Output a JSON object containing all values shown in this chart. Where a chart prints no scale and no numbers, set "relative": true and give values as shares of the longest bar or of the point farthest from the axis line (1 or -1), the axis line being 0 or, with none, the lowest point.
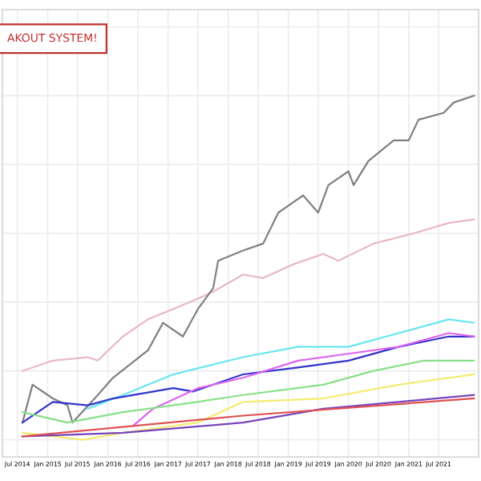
{
  "chart_data": {
    "type": "line",
    "relative": true,
    "grid": true,
    "legend": false,
    "annotations": [
      "AKOUT SYSTEM!"
    ],
    "xlim": [
      "2014-04",
      "2022-03"
    ],
    "xticks": [
      {
        "value": "2014-07",
        "label": "Jul 2014"
      },
      {
        "value": "2015-01",
        "label": "Jan 2015"
      },
      {
        "value": "2015-07",
        "label": "Jul 2015"
      },
      {
        "value": "2016-01",
        "label": "Jan 2016"
      },
      {
        "value": "2016-07",
        "label": "Jul 2016"
      },
      {
        "value": "2017-01",
        "label": "Jan 2017"
      },
      {
        "value": "2017-07",
        "label": "Jul 2017"
      },
      {
        "value": "2018-01",
        "label": "Jan 2018"
      },
      {
        "value": "2018-07",
        "label": "Jul 2018"
      },
      {
        "value": "2019-01",
        "label": "Jan 2019"
      },
      {
        "value": "2019-07",
        "label": "Jul 2019"
      },
      {
        "value": "2020-01",
        "label": "Jan 2020"
      },
      {
        "value": "2020-07",
        "label": "Jul 2020"
      },
      {
        "value": "2021-01",
        "label": "Jan 2021"
      },
      {
        "value": "2021-07",
        "label": "Jul 2021"
      }
    ],
    "series": [
      {
        "color": "#e8b8c4",
        "x": [
          "2014-08",
          "2015-02",
          "2015-09",
          "2015-11",
          "2016-04",
          "2016-09",
          "2017-02",
          "2017-07",
          "2017-10",
          "2018-04",
          "2018-08",
          "2019-02",
          "2019-08",
          "2019-11",
          "2020-06",
          "2021-02",
          "2021-09",
          "2022-02"
        ],
        "values": [
          0.2,
          0.23,
          0.24,
          0.23,
          0.3,
          0.35,
          0.38,
          0.41,
          0.43,
          0.48,
          0.47,
          0.51,
          0.54,
          0.52,
          0.57,
          0.6,
          0.63,
          0.64
        ]
      },
      {
        "color": "#808080",
        "x": [
          "2014-08",
          "2014-10",
          "2015-02",
          "2015-05",
          "2015-06",
          "2015-11",
          "2016-02",
          "2016-09",
          "2016-12",
          "2017-04",
          "2017-07",
          "2017-10",
          "2017-11",
          "2018-04",
          "2018-08",
          "2018-11",
          "2019-04",
          "2019-07",
          "2019-09",
          "2020-01",
          "2020-02",
          "2020-05",
          "2020-10",
          "2021-01",
          "2021-03",
          "2021-08",
          "2021-10",
          "2022-02"
        ],
        "values": [
          0.05,
          0.16,
          0.12,
          0.1,
          0.05,
          0.13,
          0.18,
          0.26,
          0.34,
          0.3,
          0.38,
          0.44,
          0.52,
          0.55,
          0.57,
          0.66,
          0.71,
          0.66,
          0.74,
          0.78,
          0.74,
          0.81,
          0.87,
          0.87,
          0.93,
          0.95,
          0.98,
          1
        ]
      },
      {
        "color": "#66e6f0",
        "x": [
          "2015-09",
          "2016-04",
          "2017-02",
          "2018-04",
          "2019-03",
          "2020-01",
          "2020-11",
          "2021-09",
          "2022-02"
        ],
        "values": [
          0.09,
          0.13,
          0.19,
          0.24,
          0.27,
          0.27,
          0.31,
          0.35,
          0.34
        ]
      },
      {
        "color": "#3333cc",
        "x": [
          "2014-08",
          "2015-02",
          "2015-09",
          "2016-02",
          "2017-02",
          "2017-06",
          "2018-04",
          "2019-03",
          "2020-01",
          "2020-11",
          "2021-09",
          "2022-02"
        ],
        "values": [
          0.05,
          0.11,
          0.1,
          0.12,
          0.15,
          0.14,
          0.19,
          0.21,
          0.23,
          0.27,
          0.3,
          0.3
        ]
      },
      {
        "color": "#dd66ee",
        "x": [
          "2016-06",
          "2016-10",
          "2017-07",
          "2018-04",
          "2019-03",
          "2020-01",
          "2020-11",
          "2021-09",
          "2022-02"
        ],
        "values": [
          0.04,
          0.09,
          0.15,
          0.18,
          0.23,
          0.25,
          0.27,
          0.31,
          0.3
        ]
      },
      {
        "color": "#88e088",
        "x": [
          "2014-08",
          "2015-05",
          "2016-04",
          "2017-07",
          "2018-04",
          "2019-08",
          "2020-06",
          "2021-04",
          "2022-02"
        ],
        "values": [
          0.08,
          0.05,
          0.08,
          0.11,
          0.13,
          0.16,
          0.2,
          0.23,
          0.23
        ]
      },
      {
        "color": "#f2ec70",
        "x": [
          "2014-08",
          "2015-08",
          "2016-04",
          "2017-07",
          "2018-04",
          "2019-08",
          "2020-11",
          "2022-02"
        ],
        "values": [
          0.02,
          0,
          0.02,
          0.05,
          0.11,
          0.12,
          0.16,
          0.19
        ]
      },
      {
        "color": "#7744bb",
        "x": [
          "2014-08",
          "2016-04",
          "2018-04",
          "2019-08",
          "2020-11",
          "2022-02"
        ],
        "values": [
          0.01,
          0.02,
          0.05,
          0.09,
          0.11,
          0.13
        ]
      },
      {
        "color": "#e05050",
        "x": [
          "2014-08",
          "2018-04",
          "2022-02"
        ],
        "values": [
          0.01,
          0.07,
          0.12
        ]
      }
    ]
  }
}
